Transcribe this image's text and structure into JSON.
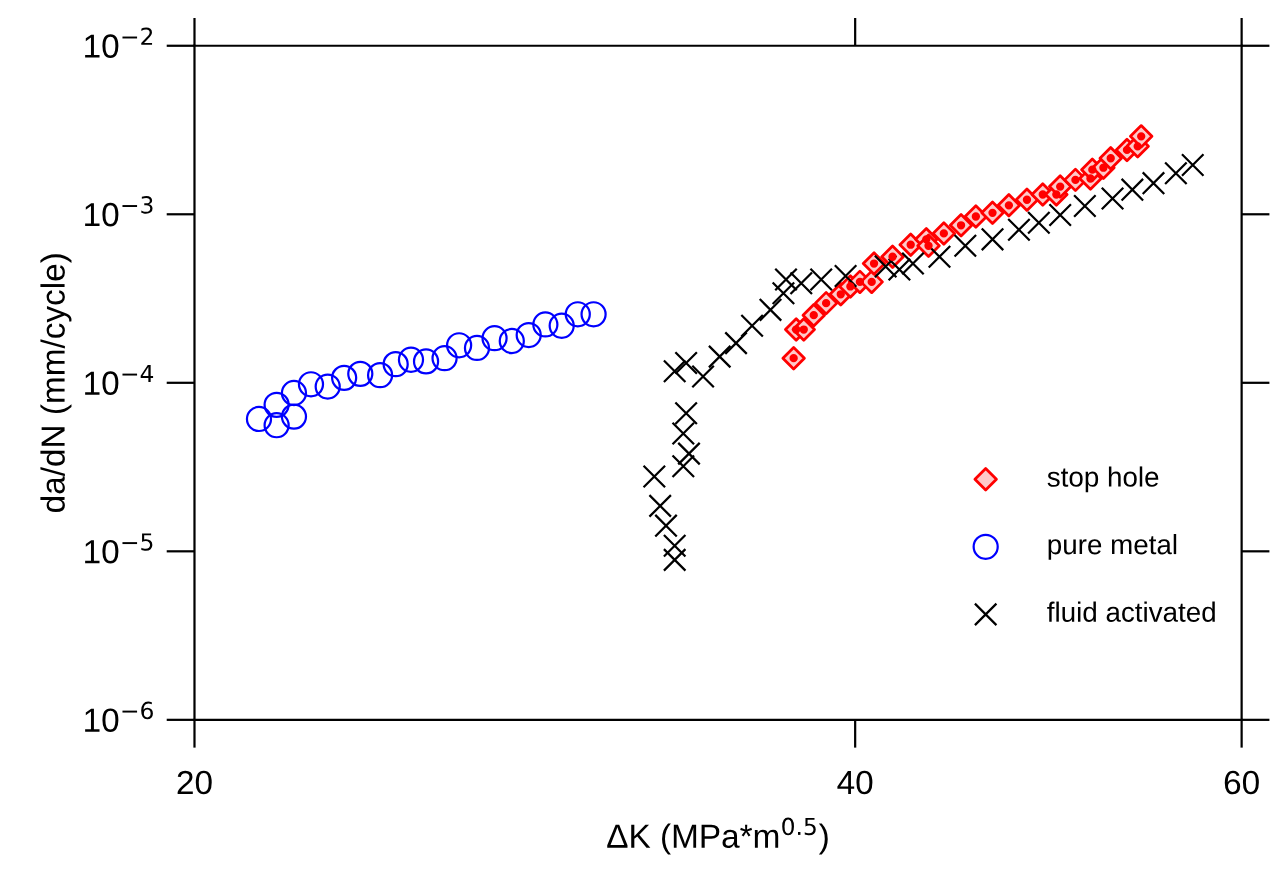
{
  "chart_data": {
    "type": "scatter",
    "xlabel": "ΔK (MPa*m$^{0.5}$)",
    "ylabel": "da/dN (mm/cycle)",
    "log": "xy",
    "grid": false,
    "legend": "bottom right",
    "xlim": [
      20,
      60
    ],
    "xticks": [
      20,
      40,
      60
    ],
    "ylim": [
      1e-06,
      0.01
    ],
    "yticks": [
      {
        "value": 1e-06,
        "label": "10$^{−6}$"
      },
      {
        "value": 1e-05,
        "label": "10$^{−5}$"
      },
      {
        "value": 0.0001,
        "label": "10$^{−4}$"
      },
      {
        "value": 0.001,
        "label": "10$^{−3}$"
      },
      {
        "value": 0.01,
        "label": "10$^{−2}$"
      }
    ],
    "series": [
      {
        "name": "stop hole",
        "color": "#ff0000",
        "marker": "diamond",
        "x": [
          37.5,
          37.6,
          37.9,
          38.3,
          38.8,
          39.4,
          39.8,
          40.2,
          40.7,
          40.8,
          41.6,
          42.4,
          43.1,
          43.2,
          43.9,
          44.7,
          45.4,
          46.2,
          47.0,
          47.9,
          48.7,
          49.4,
          49.6,
          50.4,
          51.2,
          51.3,
          51.9,
          52.3,
          53.2,
          53.8,
          54.0
        ],
        "values": [
          0.00014,
          0.000207,
          0.000207,
          0.000252,
          0.000297,
          0.000335,
          0.000373,
          0.000397,
          0.000397,
          0.00051,
          0.00056,
          0.00066,
          0.00071,
          0.00065,
          0.00077,
          0.00086,
          0.00097,
          0.00102,
          0.00113,
          0.00122,
          0.00131,
          0.00131,
          0.00146,
          0.0016,
          0.00163,
          0.00184,
          0.00189,
          0.00215,
          0.00241,
          0.00253,
          0.0029
        ]
      },
      {
        "name": "pure metal",
        "color": "#0000ff",
        "marker": "circle",
        "x": [
          21.4,
          21.8,
          21.8,
          22.2,
          22.2,
          22.6,
          23.0,
          23.4,
          23.8,
          24.3,
          24.7,
          25.1,
          25.5,
          26.0,
          26.4,
          26.9,
          27.4,
          27.9,
          28.4,
          28.9,
          29.4,
          29.9,
          30.4
        ],
        "values": [
          6.1e-05,
          7.4e-05,
          5.6e-05,
          6.3e-05,
          8.7e-05,
          9.8e-05,
          9.5e-05,
          0.000107,
          0.000113,
          0.000111,
          0.000129,
          0.000137,
          0.000134,
          0.00014,
          0.000167,
          0.000161,
          0.000184,
          0.000177,
          0.000192,
          0.000222,
          0.000218,
          0.000255,
          0.000255
        ]
      },
      {
        "name": "fluid activated",
        "color": "#000000",
        "marker": "cross",
        "x": [
          32.4,
          32.6,
          32.8,
          33.1,
          33.1,
          33.1,
          33.5,
          33.4,
          33.6,
          33.4,
          33.5,
          34.1,
          34.7,
          35.3,
          35.9,
          36.6,
          37.1,
          37.2,
          37.8,
          38.6,
          39.6,
          41.3,
          41.9,
          42.5,
          43.7,
          44.9,
          46.2,
          47.5,
          48.5,
          49.6,
          50.9,
          52.4,
          53.5,
          54.7,
          56.0,
          57.0
        ],
        "values": [
          2.78e-05,
          1.86e-05,
          1.42e-05,
          1.08e-05,
          8.9e-06,
          0.000117,
          0.000131,
          3.2e-05,
          3.8e-05,
          5e-05,
          6.6e-05,
          0.000109,
          0.000143,
          0.000172,
          0.000218,
          0.000271,
          0.00034,
          0.00041,
          0.00039,
          0.00041,
          0.00043,
          0.00049,
          0.00047,
          0.00051,
          0.00056,
          0.00065,
          0.00071,
          0.00081,
          0.00089,
          0.00099,
          0.00112,
          0.00124,
          0.0014,
          0.00153,
          0.00175,
          0.00196
        ]
      }
    ]
  }
}
